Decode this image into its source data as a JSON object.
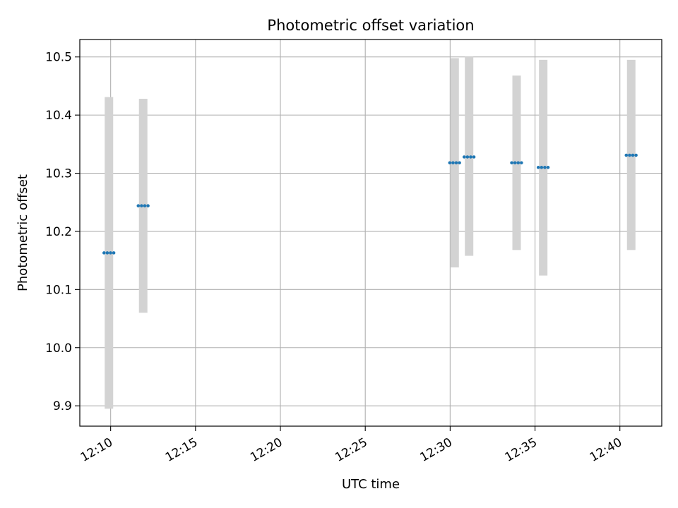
{
  "chart_data": {
    "type": "scatter",
    "title": "Photometric offset variation",
    "xlabel": "UTC time",
    "ylabel": "Photometric offset",
    "x_tick_labels": [
      "12:10",
      "12:15",
      "12:20",
      "12:25",
      "12:30",
      "12:35",
      "12:40"
    ],
    "y_tick_labels": [
      "9.9",
      "10.0",
      "10.1",
      "10.2",
      "10.3",
      "10.4",
      "10.5"
    ],
    "x_ticks_time": [
      "12:10",
      "12:15",
      "12:20",
      "12:25",
      "12:30",
      "12:35",
      "12:40"
    ],
    "y_ticks": [
      9.9,
      10.0,
      10.1,
      10.2,
      10.3,
      10.4,
      10.5
    ],
    "xlim_time": [
      "12:08:11",
      "12:42:28"
    ],
    "ylim": [
      9.865,
      10.53
    ],
    "grid": true,
    "points": [
      {
        "time": "12:09:54",
        "y": 10.163,
        "ylow": 9.895,
        "yhigh": 10.431
      },
      {
        "time": "12:11:55",
        "y": 10.244,
        "ylow": 10.06,
        "yhigh": 10.428
      },
      {
        "time": "12:30:16",
        "y": 10.318,
        "ylow": 10.138,
        "yhigh": 10.498
      },
      {
        "time": "12:31:07",
        "y": 10.328,
        "ylow": 10.158,
        "yhigh": 10.5
      },
      {
        "time": "12:33:55",
        "y": 10.318,
        "ylow": 10.168,
        "yhigh": 10.468
      },
      {
        "time": "12:35:29",
        "y": 10.31,
        "ylow": 10.124,
        "yhigh": 10.495
      },
      {
        "time": "12:40:40",
        "y": 10.331,
        "ylow": 10.168,
        "yhigh": 10.495
      }
    ],
    "colors": {
      "marker": "#1f77b4",
      "errorbar": "#d3d3d3",
      "grid": "#b0b0b0",
      "axes": "#000000"
    }
  }
}
